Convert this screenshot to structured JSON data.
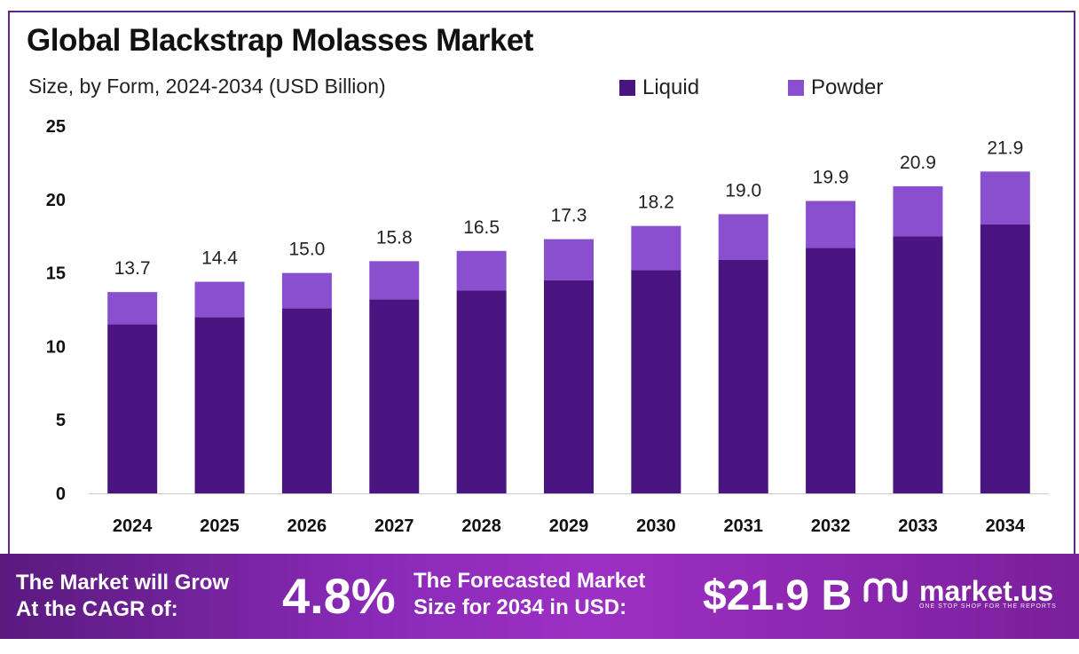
{
  "chart_data": {
    "type": "bar",
    "stacked": true,
    "title": "Global Blackstrap Molasses Market",
    "subtitle": "Size, by Form, 2024-2034 (USD Billion)",
    "categories": [
      "2024",
      "2025",
      "2026",
      "2027",
      "2028",
      "2029",
      "2030",
      "2031",
      "2032",
      "2033",
      "2034"
    ],
    "series": [
      {
        "name": "Liquid",
        "color": "#4b1581",
        "values": [
          11.5,
          12.0,
          12.6,
          13.2,
          13.8,
          14.5,
          15.2,
          15.9,
          16.7,
          17.5,
          18.3
        ]
      },
      {
        "name": "Powder",
        "color": "#8a4fcf",
        "values": [
          2.2,
          2.4,
          2.4,
          2.6,
          2.7,
          2.8,
          3.0,
          3.1,
          3.2,
          3.4,
          3.6
        ]
      }
    ],
    "totals": [
      "13.7",
      "14.4",
      "15.0",
      "15.8",
      "16.5",
      "17.3",
      "18.2",
      "19.0",
      "19.9",
      "20.9",
      "21.9"
    ],
    "yticks": [
      0,
      5,
      10,
      15,
      20,
      25
    ],
    "ylim": [
      0,
      25
    ],
    "xlabel": "",
    "ylabel": "",
    "legend_position": "top-right",
    "grid": false
  },
  "footer": {
    "cagr_label_line1": "The Market will Grow",
    "cagr_label_line2": "At the CAGR of:",
    "cagr_value": "4.8%",
    "forecast_label_line1": "The Forecasted Market",
    "forecast_label_line2": "Size for 2034 in USD:",
    "forecast_value": "$21.9 B",
    "brand_name": "market.us",
    "brand_tagline": "ONE STOP SHOP FOR THE REPORTS",
    "brand_icon": "market-us-logo-icon"
  },
  "colors": {
    "frame": "#5b2a86",
    "axis": "#cccccc"
  }
}
